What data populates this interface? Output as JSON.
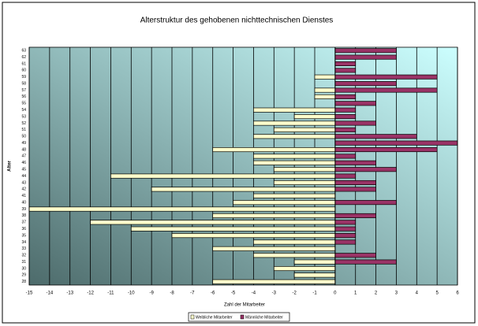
{
  "chart_data": {
    "type": "pyramid",
    "title": "Alterstruktur des gehobenen nichttechnischen Dienstes",
    "y_label": "Alter",
    "x_label": "Zahl der Mitarbeiter",
    "categories": [
      "28",
      "29",
      "30",
      "31",
      "32",
      "33",
      "34",
      "35",
      "36",
      "37",
      "38",
      "39",
      "40",
      "41",
      "42",
      "43",
      "44",
      "45",
      "46",
      "47",
      "48",
      "49",
      "50",
      "51",
      "52",
      "53",
      "54",
      "55",
      "56",
      "57",
      "58",
      "59",
      "60",
      "61",
      "62",
      "63"
    ],
    "series": [
      {
        "name": "Weibliche Mitarbeiter",
        "color": "#ffffcc",
        "values": [
          -6,
          -2,
          -3,
          -2,
          -4,
          -6,
          -4,
          -8,
          -10,
          -12,
          -6,
          -15,
          -5,
          -4,
          -9,
          -3,
          -11,
          -3,
          -4,
          -4,
          -6,
          0,
          -4,
          -3,
          -4,
          -2,
          -4,
          0,
          -1,
          -1,
          0,
          -1,
          0,
          0,
          0,
          0
        ]
      },
      {
        "name": "Männliche Mitarbeiter",
        "color": "#993366",
        "values": [
          0,
          0,
          0,
          3,
          2,
          0,
          1,
          1,
          1,
          1,
          2,
          0,
          3,
          0,
          2,
          2,
          1,
          3,
          2,
          1,
          5,
          6,
          4,
          1,
          2,
          1,
          1,
          2,
          1,
          5,
          3,
          5,
          1,
          1,
          3,
          3
        ]
      }
    ],
    "xlim": [
      -15,
      6
    ],
    "xticks": [
      -15,
      -14,
      -13,
      -12,
      -11,
      -10,
      -9,
      -8,
      -7,
      -6,
      -5,
      -4,
      -3,
      -2,
      -1,
      0,
      1,
      2,
      3,
      4,
      5,
      6
    ],
    "grid": true,
    "legend": "bottom"
  }
}
